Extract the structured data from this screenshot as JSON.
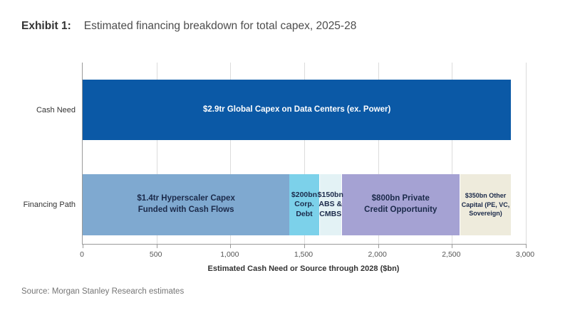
{
  "header": {
    "exhibit": "Exhibit 1:",
    "title": "Estimated financing breakdown for total capex, 2025-28"
  },
  "chart_data": {
    "type": "bar",
    "orientation": "horizontal-stacked",
    "title": "Estimated financing breakdown for total capex, 2025-28",
    "xlabel": "Estimated Cash Need or Source through 2028 ($bn)",
    "xlim": [
      0,
      3000
    ],
    "x_ticks": [
      "0",
      "500",
      "1,000",
      "1,500",
      "2,000",
      "2,500",
      "3,000"
    ],
    "grid": true,
    "rows": [
      {
        "category": "Cash Need",
        "total": 2900,
        "segments": [
          {
            "label": "$2.9tr Global Capex on Data Centers (ex. Power)",
            "value": 2900,
            "color": "#0b59a6",
            "text_color": "#ffffff"
          }
        ]
      },
      {
        "category": "Financing Path",
        "total": 2900,
        "segments": [
          {
            "label": "$1.4tr Hyperscaler Capex\nFunded with Cash Flows",
            "value": 1400,
            "color": "#7fa9d0",
            "text_color": "#1b2a4a"
          },
          {
            "label": "$200bn\nCorp.\nDebt",
            "value": 200,
            "color": "#7cd1ea",
            "text_color": "#1b2a4a"
          },
          {
            "label": "$150bn\nABS &\nCMBS",
            "value": 150,
            "color": "#e3f2f5",
            "text_color": "#1b2a4a"
          },
          {
            "label": "$800bn Private\nCredit Opportunity",
            "value": 800,
            "color": "#a5a2d3",
            "text_color": "#1b2a4a"
          },
          {
            "label": "$350bn Other\nCapital (PE, VC,\nSovereign)",
            "value": 350,
            "color": "#eeebdc",
            "text_color": "#1b2a4a"
          }
        ]
      }
    ]
  },
  "source": "Source: Morgan Stanley Research estimates"
}
